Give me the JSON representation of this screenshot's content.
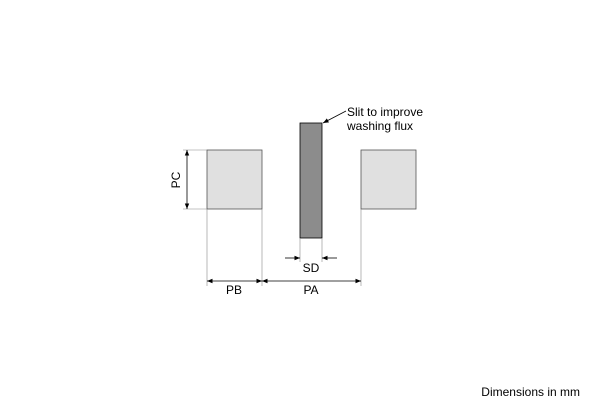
{
  "annotation": {
    "lines": [
      "Slit to improve",
      "washing flux"
    ]
  },
  "dimensions": {
    "pc": "PC",
    "pb": "PB",
    "pa": "PA",
    "sd": "SD"
  },
  "footer": "Dimensions in mm"
}
